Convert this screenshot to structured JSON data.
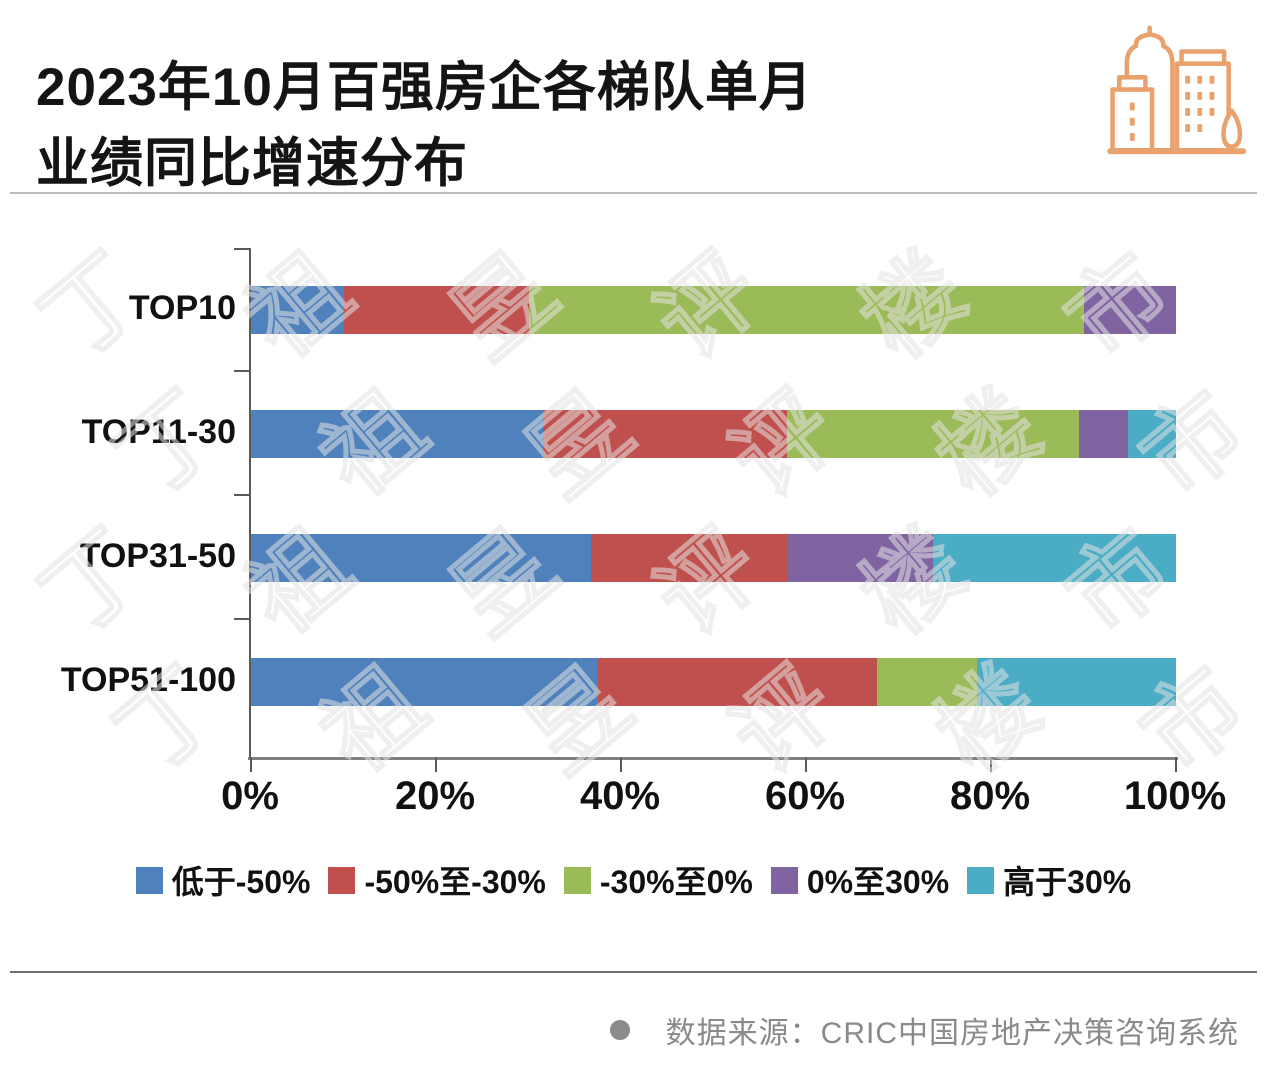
{
  "title": {
    "line1": "2023年10月百强房企各梯队单月",
    "line2": "业绩同比增速分布"
  },
  "chart_data": {
    "type": "bar",
    "orientation": "horizontal",
    "stacked": true,
    "categories": [
      "TOP10",
      "TOP11-30",
      "TOP31-50",
      "TOP51-100"
    ],
    "series": [
      {
        "name": "低于-50%",
        "color": "#4F81BD",
        "values": [
          10,
          31.6,
          36.8,
          37.5
        ]
      },
      {
        "name": "-50%至-30%",
        "color": "#C0504D",
        "values": [
          20,
          26.3,
          21.1,
          30.2
        ]
      },
      {
        "name": "-30%至0%",
        "color": "#9BBB59",
        "values": [
          60,
          31.6,
          0,
          10.8
        ]
      },
      {
        "name": "0%至30%",
        "color": "#8064A2",
        "values": [
          10,
          5.3,
          15.8,
          0
        ]
      },
      {
        "name": "高于30%",
        "color": "#4BACC6",
        "values": [
          0,
          5.2,
          26.3,
          21.5
        ]
      }
    ],
    "x_ticks": [
      "0%",
      "20%",
      "40%",
      "60%",
      "80%",
      "100%"
    ],
    "xlim": [
      0,
      100
    ],
    "grid": false,
    "legend_position": "bottom"
  },
  "watermark": {
    "text": "丁祖昱评楼市"
  },
  "footer": {
    "source": "数据来源：CRIC中国房地产决策咨询系统"
  },
  "accent_colors": {
    "icon_orange": "#E9A26E",
    "axis_gray": "#595959",
    "footer_gray": "#8a8a8a"
  }
}
